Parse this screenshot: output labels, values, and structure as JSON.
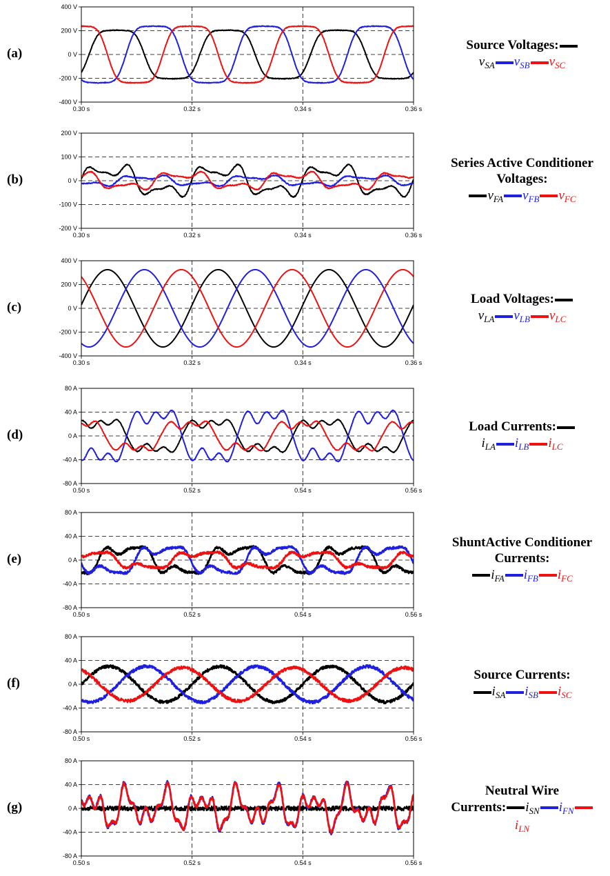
{
  "colors": {
    "phase_a": "#000000",
    "phase_b": "#1f1fe0",
    "phase_c": "#ee1111",
    "grid": "#000000"
  },
  "panels": [
    {
      "label": "(a)",
      "legend": {
        "title": "Source Voltages:",
        "trailing_bar_in_title": true,
        "items": [
          {
            "sym": "v",
            "sub": "SA",
            "color": "phase_a"
          },
          {
            "sym": "v",
            "sub": "SB",
            "color": "phase_b"
          },
          {
            "sym": "v",
            "sub": "SC",
            "color": "phase_c"
          }
        ]
      }
    },
    {
      "label": "(b)",
      "legend": {
        "title": "Series Active Conditioner Voltages:",
        "trailing_bar_in_title": false,
        "items": [
          {
            "sym": "v",
            "sub": "FA",
            "color": "phase_a"
          },
          {
            "sym": "v",
            "sub": "FB",
            "color": "phase_b"
          },
          {
            "sym": "v",
            "sub": "FC",
            "color": "phase_c"
          }
        ]
      }
    },
    {
      "label": "(c)",
      "legend": {
        "title": "Load Voltages:",
        "trailing_bar_in_title": true,
        "items": [
          {
            "sym": "v",
            "sub": "LA",
            "color": "phase_a"
          },
          {
            "sym": "v",
            "sub": "LB",
            "color": "phase_b"
          },
          {
            "sym": "v",
            "sub": "LC",
            "color": "phase_c"
          }
        ]
      }
    },
    {
      "label": "(d)",
      "legend": {
        "title": "Load Currents:",
        "trailing_bar_in_title": true,
        "items": [
          {
            "sym": "i",
            "sub": "LA",
            "color": "phase_a"
          },
          {
            "sym": "i",
            "sub": "LB",
            "color": "phase_b"
          },
          {
            "sym": "i",
            "sub": "LC",
            "color": "phase_c"
          }
        ]
      }
    },
    {
      "label": "(e)",
      "legend": {
        "title": "ShuntActive Conditioner Currents:",
        "trailing_bar_in_title": false,
        "items": [
          {
            "sym": "i",
            "sub": "FA",
            "color": "phase_a"
          },
          {
            "sym": "i",
            "sub": "FB",
            "color": "phase_b"
          },
          {
            "sym": "i",
            "sub": "FC",
            "color": "phase_c"
          }
        ]
      }
    },
    {
      "label": "(f)",
      "legend": {
        "title": "Source Currents:",
        "trailing_bar_in_title": false,
        "items": [
          {
            "sym": "i",
            "sub": "SA",
            "color": "phase_a"
          },
          {
            "sym": "i",
            "sub": "SB",
            "color": "phase_b"
          },
          {
            "sym": "i",
            "sub": "SC",
            "color": "phase_c"
          }
        ]
      }
    },
    {
      "label": "(g)",
      "legend": {
        "title": "Neutral Wire",
        "title2": "Currents:",
        "trailing_bar_in_title": false,
        "items": [
          {
            "sym": "i",
            "sub": "SN",
            "color": "phase_a"
          },
          {
            "sym": "i",
            "sub": "FN",
            "color": "phase_b"
          },
          {
            "sym": "i",
            "sub": "LN",
            "color": "phase_c"
          }
        ]
      }
    }
  ],
  "chart_data": [
    {
      "type": "line",
      "title": "",
      "xlabel": "",
      "ylabel": "",
      "xlim": [
        0.3,
        0.36
      ],
      "ylim": [
        -400,
        400
      ],
      "xticks": [
        "0.30 s",
        "0.32 s",
        "0.34 s",
        "0.36 s"
      ],
      "yticks": [
        "400 V",
        "200 V",
        "0 V",
        "-200 V",
        "-400 V"
      ],
      "grid": "dashed",
      "frequency_hz": 50,
      "series": [
        {
          "name": "vSA",
          "color": "phase_a",
          "shape": "flattened-sine",
          "amplitude": 240,
          "phase_deg": -25
        },
        {
          "name": "vSB",
          "color": "phase_b",
          "shape": "flattened-sine",
          "amplitude": 280,
          "phase_deg": -145
        },
        {
          "name": "vSC",
          "color": "phase_c",
          "shape": "flattened-sine",
          "amplitude": 280,
          "phase_deg": 95
        }
      ]
    },
    {
      "type": "line",
      "title": "",
      "xlabel": "",
      "ylabel": "",
      "xlim": [
        0.3,
        0.36
      ],
      "ylim": [
        -200,
        200
      ],
      "xticks": [
        "0.30 s",
        "0.32 s",
        "0.34 s",
        "0.36 s"
      ],
      "yticks": [
        "200 V",
        "100 V",
        "0 V",
        "-100 V",
        "-200 V"
      ],
      "grid": "dashed",
      "frequency_hz": 50,
      "series": [
        {
          "name": "vFA",
          "color": "phase_a",
          "shape": "distorted",
          "amplitude": 90,
          "phase_deg": 0
        },
        {
          "name": "vFB",
          "color": "phase_b",
          "shape": "distorted",
          "amplitude": 30,
          "phase_deg": -120
        },
        {
          "name": "vFC",
          "color": "phase_c",
          "shape": "distorted",
          "amplitude": 50,
          "phase_deg": 120
        }
      ]
    },
    {
      "type": "line",
      "title": "",
      "xlabel": "",
      "ylabel": "",
      "xlim": [
        0.3,
        0.36
      ],
      "ylim": [
        -400,
        400
      ],
      "xticks": [
        "0.30 s",
        "0.32 s",
        "0.34 s",
        "0.36 s"
      ],
      "yticks": [
        "400 V",
        "200 V",
        "0 V",
        "-200 V",
        "-400 V"
      ],
      "grid": "dashed",
      "frequency_hz": 50,
      "series": [
        {
          "name": "vLA",
          "color": "phase_a",
          "shape": "sine",
          "amplitude": 325,
          "phase_deg": 5
        },
        {
          "name": "vLB",
          "color": "phase_b",
          "shape": "sine",
          "amplitude": 325,
          "phase_deg": -115
        },
        {
          "name": "vLC",
          "color": "phase_c",
          "shape": "sine",
          "amplitude": 325,
          "phase_deg": 125
        }
      ]
    },
    {
      "type": "line",
      "title": "",
      "xlabel": "",
      "ylabel": "",
      "xlim": [
        0.5,
        0.56
      ],
      "ylim": [
        -80,
        80
      ],
      "xticks": [
        "0.50 s",
        "0.52 s",
        "0.54 s",
        "0.56 s"
      ],
      "yticks": [
        "80 A",
        "40 A",
        "0 A",
        "-40 A",
        "-80 A"
      ],
      "grid": "dashed",
      "frequency_hz": 50,
      "series": [
        {
          "name": "iLA",
          "color": "phase_a",
          "shape": "nonlinear-load",
          "amplitude": 33,
          "phase_deg": 30
        },
        {
          "name": "iLB",
          "color": "phase_b",
          "shape": "nonlinear-load",
          "amplitude": 52,
          "phase_deg": -150
        },
        {
          "name": "iLC",
          "color": "phase_c",
          "shape": "nonlinear-load",
          "amplitude": 30,
          "phase_deg": 100
        }
      ]
    },
    {
      "type": "line",
      "title": "",
      "xlabel": "",
      "ylabel": "",
      "xlim": [
        0.5,
        0.56
      ],
      "ylim": [
        -80,
        80
      ],
      "xticks": [
        "0.50 s",
        "0.52 s",
        "0.54 s",
        "0.56 s"
      ],
      "yticks": [
        "80 A",
        "40 A",
        "0 A",
        "-40 A",
        "-80 A"
      ],
      "grid": "dashed",
      "frequency_hz": 50,
      "series": [
        {
          "name": "iFA",
          "color": "phase_a",
          "shape": "compensating-noisy",
          "amplitude": 27,
          "phase_deg": -60
        },
        {
          "name": "iFB",
          "color": "phase_b",
          "shape": "compensating-noisy",
          "amplitude": 27,
          "phase_deg": 180
        },
        {
          "name": "iFC",
          "color": "phase_c",
          "shape": "compensating-noisy",
          "amplitude": 16,
          "phase_deg": 60
        }
      ]
    },
    {
      "type": "line",
      "title": "",
      "xlabel": "",
      "ylabel": "",
      "xlim": [
        0.5,
        0.56
      ],
      "ylim": [
        -80,
        80
      ],
      "xticks": [
        "0.50 s",
        "0.52 s",
        "0.54 s",
        "0.56 s"
      ],
      "yticks": [
        "80 A",
        "40 A",
        "0 A",
        "-40 A",
        "-80 A"
      ],
      "grid": "dashed",
      "frequency_hz": 50,
      "series": [
        {
          "name": "iSA",
          "color": "phase_a",
          "shape": "sine-noisy",
          "amplitude": 30,
          "phase_deg": 0
        },
        {
          "name": "iSB",
          "color": "phase_b",
          "shape": "sine-noisy",
          "amplitude": 30,
          "phase_deg": -120
        },
        {
          "name": "iSC",
          "color": "phase_c",
          "shape": "sine-noisy",
          "amplitude": 28,
          "phase_deg": 120
        }
      ]
    },
    {
      "type": "line",
      "title": "",
      "xlabel": "",
      "ylabel": "",
      "xlim": [
        0.5,
        0.56
      ],
      "ylim": [
        -80,
        80
      ],
      "xticks": [
        "0.50 s",
        "0.52 s",
        "0.54 s",
        "0.56 s"
      ],
      "yticks": [
        "80 A",
        "40 A",
        "0 A",
        "-40 A",
        "-80 A"
      ],
      "grid": "dashed",
      "frequency_hz": 150,
      "series": [
        {
          "name": "iSN",
          "color": "phase_a",
          "shape": "noise",
          "amplitude": 6,
          "phase_deg": 0
        },
        {
          "name": "iFN",
          "color": "phase_b",
          "shape": "neutral-harmonic",
          "amplitude": 42,
          "phase_deg": 0
        },
        {
          "name": "iLN",
          "color": "phase_c",
          "shape": "neutral-harmonic",
          "amplitude": 40,
          "phase_deg": 0
        }
      ]
    }
  ]
}
